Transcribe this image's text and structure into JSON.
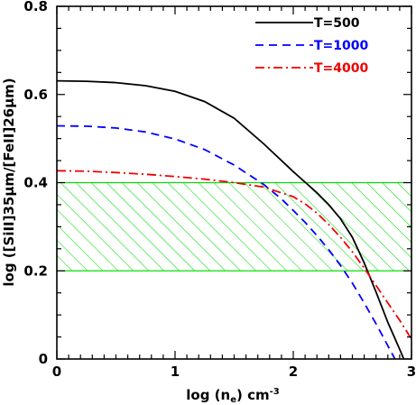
{
  "chart_data": {
    "type": "line",
    "title": "",
    "xlabel_main": "log (n",
    "xlabel_sub": "e",
    "xlabel_tail": ") cm",
    "xlabel_sup": "-3",
    "ylabel": "log ([SiII]35μm/[FeII]26μm)",
    "xlim": [
      0,
      3
    ],
    "ylim": [
      0,
      0.8
    ],
    "x_ticks": [
      "0",
      "1",
      "2",
      "3"
    ],
    "y_ticks": [
      "0",
      "0.2",
      "0.4",
      "0.6",
      "0.8"
    ],
    "legend_position": "top-right",
    "shaded_band": {
      "y": [
        0.2,
        0.4
      ],
      "color": "#00dd00",
      "pattern": "diagonal-hatch"
    },
    "series": [
      {
        "name": "T=500",
        "color": "#000000",
        "style": "solid",
        "x": [
          0,
          0.25,
          0.5,
          0.75,
          1.0,
          1.25,
          1.5,
          1.75,
          2.0,
          2.1,
          2.2,
          2.3,
          2.4,
          2.5,
          2.6,
          2.7,
          2.8,
          2.9,
          2.95
        ],
        "y": [
          0.631,
          0.63,
          0.627,
          0.62,
          0.607,
          0.584,
          0.546,
          0.488,
          0.425,
          0.401,
          0.377,
          0.35,
          0.318,
          0.276,
          0.218,
          0.152,
          0.083,
          0.022,
          -0.01
        ]
      },
      {
        "name": "T=1000",
        "color": "#0000ff",
        "style": "dashed",
        "x": [
          0,
          0.25,
          0.5,
          0.75,
          1.0,
          1.25,
          1.5,
          1.75,
          1.9,
          2.0,
          2.1,
          2.2,
          2.3,
          2.4,
          2.5,
          2.6,
          2.7,
          2.8,
          2.88
        ],
        "y": [
          0.529,
          0.528,
          0.524,
          0.515,
          0.499,
          0.475,
          0.44,
          0.396,
          0.363,
          0.337,
          0.31,
          0.28,
          0.248,
          0.212,
          0.172,
          0.127,
          0.08,
          0.03,
          -0.01
        ]
      },
      {
        "name": "T=4000",
        "color": "#ee0000",
        "style": "dashdot",
        "x": [
          0,
          0.25,
          0.5,
          0.75,
          1.0,
          1.25,
          1.5,
          1.75,
          2.0,
          2.1,
          2.2,
          2.3,
          2.4,
          2.5,
          2.6,
          2.7,
          2.8,
          2.9,
          3.0
        ],
        "y": [
          0.427,
          0.426,
          0.423,
          0.419,
          0.414,
          0.408,
          0.4,
          0.39,
          0.368,
          0.352,
          0.331,
          0.305,
          0.276,
          0.243,
          0.206,
          0.167,
          0.127,
          0.088,
          0.045
        ]
      }
    ]
  }
}
